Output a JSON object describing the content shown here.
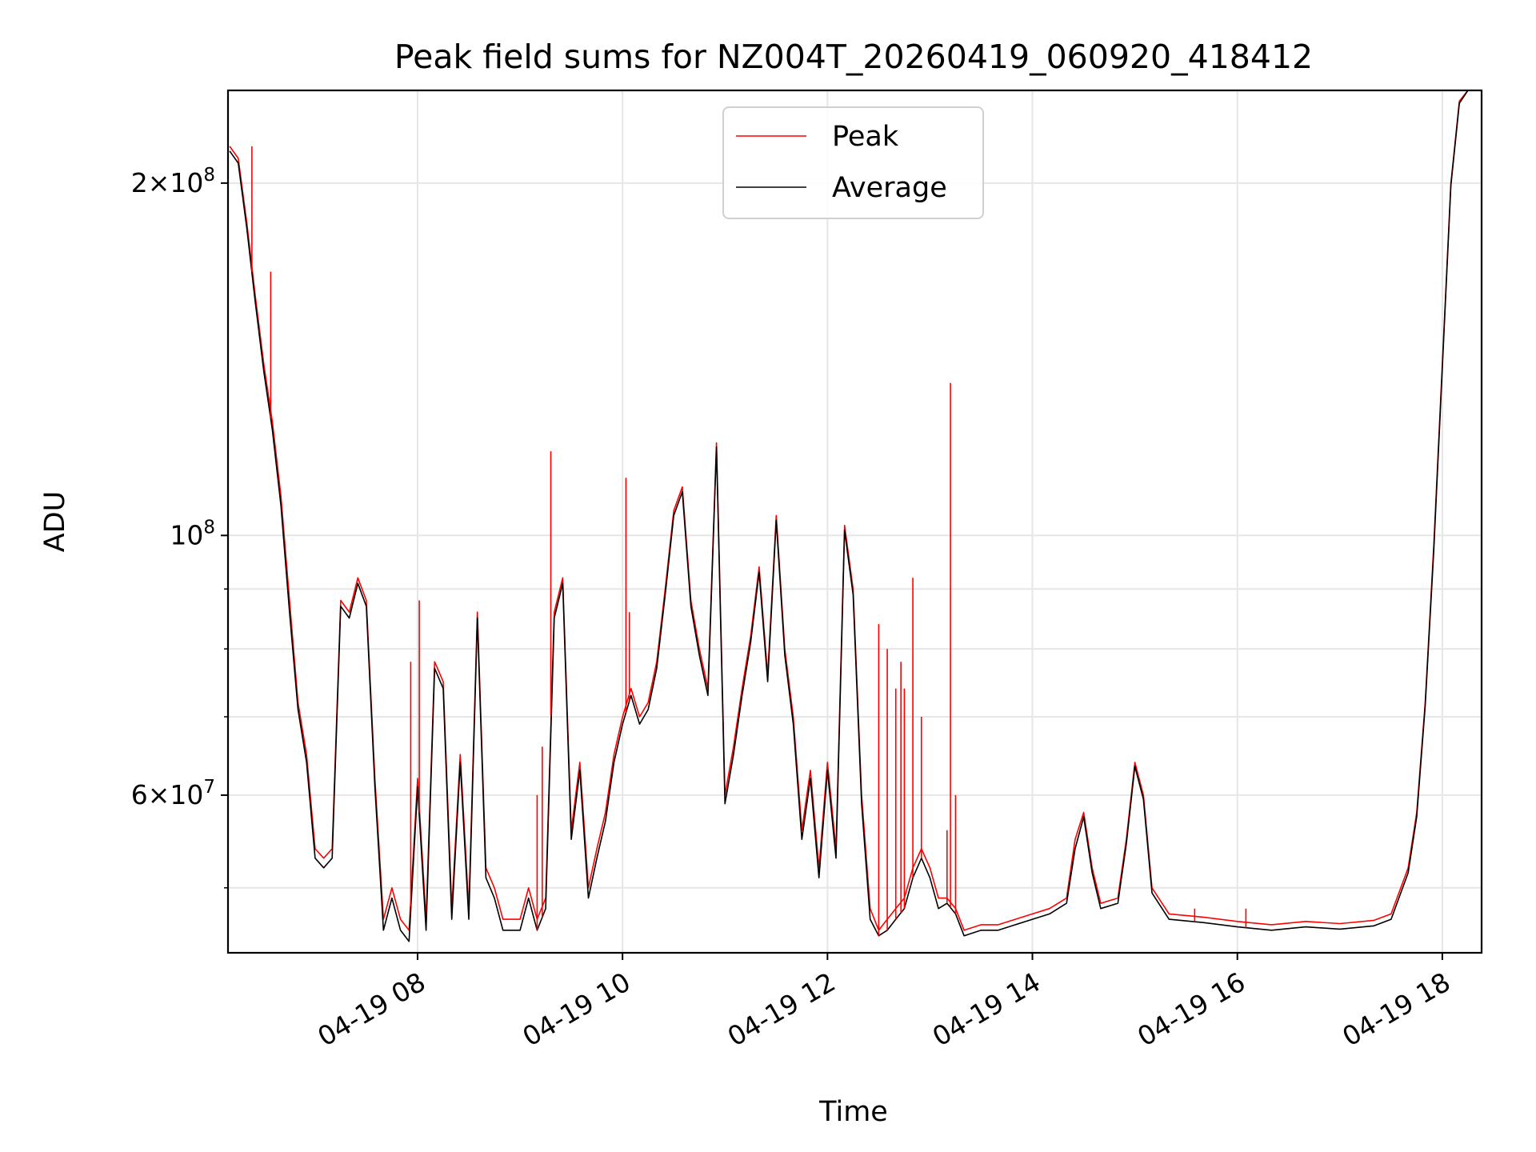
{
  "chart_data": {
    "type": "line",
    "title": "Peak field sums for NZ004T_20260419_060920_418412",
    "xlabel": "Time",
    "ylabel": "ADU",
    "y_scale": "log",
    "xlim": [
      "2026-04-19 06:09",
      "2026-04-19 18:23"
    ],
    "ylim": [
      44000000,
      240000000
    ],
    "grid": true,
    "legend_position": "top-center",
    "x_tick_labels": [
      "04-19 08",
      "04-19 10",
      "04-19 12",
      "04-19 14",
      "04-19 16",
      "04-19 18"
    ],
    "x_tick_values": [
      "2026-04-19 08:00",
      "2026-04-19 10:00",
      "2026-04-19 12:00",
      "2026-04-19 14:00",
      "2026-04-19 16:00",
      "2026-04-19 18:00"
    ],
    "y_ticks_major": [
      {
        "value": 60000000,
        "mantissa": "6",
        "exponent": "7"
      },
      {
        "value": 100000000,
        "mantissa": "",
        "exponent": "8"
      },
      {
        "value": 200000000,
        "mantissa": "2",
        "exponent": "8"
      }
    ],
    "y_ticks_minor": [
      50000000,
      70000000,
      80000000,
      90000000
    ],
    "series": [
      {
        "name": "Peak",
        "color": "#ff0000",
        "points": [
          [
            "06:10",
            215000000
          ],
          [
            "06:15",
            210000000
          ],
          [
            "06:20",
            185000000
          ],
          [
            "06:25",
            160000000
          ],
          [
            "06:30",
            140000000
          ],
          [
            "06:35",
            125000000
          ],
          [
            "06:40",
            108000000
          ],
          [
            "06:45",
            88000000
          ],
          [
            "06:50",
            72000000
          ],
          [
            "06:55",
            65000000
          ],
          [
            "07:00",
            54000000
          ],
          [
            "07:05",
            53000000
          ],
          [
            "07:10",
            54000000
          ],
          [
            "07:15",
            88000000
          ],
          [
            "07:20",
            86000000
          ],
          [
            "07:25",
            92000000
          ],
          [
            "07:30",
            88000000
          ],
          [
            "07:35",
            62000000
          ],
          [
            "07:40",
            47000000
          ],
          [
            "07:45",
            50000000
          ],
          [
            "07:50",
            47000000
          ],
          [
            "07:55",
            46000000
          ],
          [
            "08:00",
            62000000
          ],
          [
            "08:05",
            47000000
          ],
          [
            "08:10",
            78000000
          ],
          [
            "08:15",
            75000000
          ],
          [
            "08:20",
            48000000
          ],
          [
            "08:25",
            65000000
          ],
          [
            "08:30",
            48000000
          ],
          [
            "08:35",
            86000000
          ],
          [
            "08:40",
            52000000
          ],
          [
            "08:45",
            50000000
          ],
          [
            "08:50",
            47000000
          ],
          [
            "08:55",
            47000000
          ],
          [
            "09:00",
            47000000
          ],
          [
            "09:05",
            50000000
          ],
          [
            "09:10",
            47000000
          ],
          [
            "09:15",
            49000000
          ],
          [
            "09:20",
            86000000
          ],
          [
            "09:25",
            92000000
          ],
          [
            "09:30",
            56000000
          ],
          [
            "09:35",
            64000000
          ],
          [
            "09:40",
            50000000
          ],
          [
            "09:45",
            54000000
          ],
          [
            "09:50",
            58000000
          ],
          [
            "09:55",
            65000000
          ],
          [
            "10:00",
            70000000
          ],
          [
            "10:05",
            74000000
          ],
          [
            "10:10",
            70000000
          ],
          [
            "10:15",
            72000000
          ],
          [
            "10:20",
            78000000
          ],
          [
            "10:25",
            90000000
          ],
          [
            "10:30",
            105000000
          ],
          [
            "10:35",
            110000000
          ],
          [
            "10:40",
            88000000
          ],
          [
            "10:45",
            80000000
          ],
          [
            "10:50",
            74000000
          ],
          [
            "10:55",
            120000000
          ],
          [
            "11:00",
            60000000
          ],
          [
            "11:05",
            66000000
          ],
          [
            "11:10",
            74000000
          ],
          [
            "11:15",
            82000000
          ],
          [
            "11:20",
            94000000
          ],
          [
            "11:25",
            76000000
          ],
          [
            "11:30",
            104000000
          ],
          [
            "11:35",
            80000000
          ],
          [
            "11:40",
            70000000
          ],
          [
            "11:45",
            56000000
          ],
          [
            "11:50",
            63000000
          ],
          [
            "11:55",
            52000000
          ],
          [
            "12:00",
            64000000
          ],
          [
            "12:05",
            54000000
          ],
          [
            "12:10",
            102000000
          ],
          [
            "12:15",
            90000000
          ],
          [
            "12:20",
            60000000
          ],
          [
            "12:25",
            48000000
          ],
          [
            "12:30",
            46000000
          ],
          [
            "12:35",
            47000000
          ],
          [
            "12:40",
            48000000
          ],
          [
            "12:45",
            49000000
          ],
          [
            "12:50",
            52000000
          ],
          [
            "12:55",
            54000000
          ],
          [
            "13:00",
            52000000
          ],
          [
            "13:05",
            49000000
          ],
          [
            "13:10",
            49000000
          ],
          [
            "13:15",
            48000000
          ],
          [
            "13:20",
            46000000
          ],
          [
            "13:30",
            46500000
          ],
          [
            "13:40",
            46500000
          ],
          [
            "13:50",
            47000000
          ],
          [
            "14:00",
            47500000
          ],
          [
            "14:10",
            48000000
          ],
          [
            "14:20",
            49000000
          ],
          [
            "14:25",
            55000000
          ],
          [
            "14:30",
            58000000
          ],
          [
            "14:35",
            52000000
          ],
          [
            "14:40",
            48500000
          ],
          [
            "14:50",
            49000000
          ],
          [
            "14:55",
            55000000
          ],
          [
            "15:00",
            64000000
          ],
          [
            "15:05",
            60000000
          ],
          [
            "15:10",
            50000000
          ],
          [
            "15:20",
            47500000
          ],
          [
            "15:40",
            47200000
          ],
          [
            "16:00",
            46800000
          ],
          [
            "16:20",
            46500000
          ],
          [
            "16:40",
            46800000
          ],
          [
            "17:00",
            46600000
          ],
          [
            "17:20",
            46900000
          ],
          [
            "17:30",
            47500000
          ],
          [
            "17:40",
            52000000
          ],
          [
            "17:45",
            58000000
          ],
          [
            "17:50",
            72000000
          ],
          [
            "17:55",
            98000000
          ],
          [
            "18:00",
            140000000
          ],
          [
            "18:05",
            200000000
          ],
          [
            "18:10",
            235000000
          ],
          [
            "18:15",
            240000000
          ]
        ]
      },
      {
        "name": "Average",
        "color": "#000000",
        "points": [
          [
            "06:10",
            213000000
          ],
          [
            "06:15",
            208000000
          ],
          [
            "06:20",
            183000000
          ],
          [
            "06:25",
            158000000
          ],
          [
            "06:30",
            138000000
          ],
          [
            "06:35",
            123000000
          ],
          [
            "06:40",
            106000000
          ],
          [
            "06:45",
            86000000
          ],
          [
            "06:50",
            71000000
          ],
          [
            "06:55",
            64000000
          ],
          [
            "07:00",
            53000000
          ],
          [
            "07:05",
            52000000
          ],
          [
            "07:10",
            53000000
          ],
          [
            "07:15",
            87000000
          ],
          [
            "07:20",
            85000000
          ],
          [
            "07:25",
            91000000
          ],
          [
            "07:30",
            87000000
          ],
          [
            "07:35",
            61000000
          ],
          [
            "07:40",
            46000000
          ],
          [
            "07:45",
            49000000
          ],
          [
            "07:50",
            46000000
          ],
          [
            "07:55",
            45000000
          ],
          [
            "08:00",
            61000000
          ],
          [
            "08:05",
            46000000
          ],
          [
            "08:10",
            77000000
          ],
          [
            "08:15",
            74000000
          ],
          [
            "08:20",
            47000000
          ],
          [
            "08:25",
            64000000
          ],
          [
            "08:30",
            47000000
          ],
          [
            "08:35",
            85000000
          ],
          [
            "08:40",
            51000000
          ],
          [
            "08:45",
            49000000
          ],
          [
            "08:50",
            46000000
          ],
          [
            "08:55",
            46000000
          ],
          [
            "09:00",
            46000000
          ],
          [
            "09:05",
            49000000
          ],
          [
            "09:10",
            46000000
          ],
          [
            "09:15",
            48000000
          ],
          [
            "09:20",
            85000000
          ],
          [
            "09:25",
            91000000
          ],
          [
            "09:30",
            55000000
          ],
          [
            "09:35",
            63000000
          ],
          [
            "09:40",
            49000000
          ],
          [
            "09:45",
            53000000
          ],
          [
            "09:50",
            57000000
          ],
          [
            "09:55",
            64000000
          ],
          [
            "10:00",
            69000000
          ],
          [
            "10:05",
            73000000
          ],
          [
            "10:10",
            69000000
          ],
          [
            "10:15",
            71000000
          ],
          [
            "10:20",
            77000000
          ],
          [
            "10:25",
            89000000
          ],
          [
            "10:30",
            104000000
          ],
          [
            "10:35",
            109000000
          ],
          [
            "10:40",
            87000000
          ],
          [
            "10:45",
            79000000
          ],
          [
            "10:50",
            73000000
          ],
          [
            "10:55",
            119000000
          ],
          [
            "11:00",
            59000000
          ],
          [
            "11:05",
            65000000
          ],
          [
            "11:10",
            73000000
          ],
          [
            "11:15",
            81000000
          ],
          [
            "11:20",
            93000000
          ],
          [
            "11:25",
            75000000
          ],
          [
            "11:30",
            103000000
          ],
          [
            "11:35",
            79000000
          ],
          [
            "11:40",
            69000000
          ],
          [
            "11:45",
            55000000
          ],
          [
            "11:50",
            62000000
          ],
          [
            "11:55",
            51000000
          ],
          [
            "12:00",
            63000000
          ],
          [
            "12:05",
            53000000
          ],
          [
            "12:10",
            101000000
          ],
          [
            "12:15",
            89000000
          ],
          [
            "12:20",
            59000000
          ],
          [
            "12:25",
            47000000
          ],
          [
            "12:30",
            45500000
          ],
          [
            "12:35",
            46000000
          ],
          [
            "12:40",
            47000000
          ],
          [
            "12:45",
            48000000
          ],
          [
            "12:50",
            51000000
          ],
          [
            "12:55",
            53000000
          ],
          [
            "13:00",
            51000000
          ],
          [
            "13:05",
            48000000
          ],
          [
            "13:10",
            48500000
          ],
          [
            "13:15",
            47500000
          ],
          [
            "13:20",
            45500000
          ],
          [
            "13:30",
            46000000
          ],
          [
            "13:40",
            46000000
          ],
          [
            "13:50",
            46500000
          ],
          [
            "14:00",
            47000000
          ],
          [
            "14:10",
            47500000
          ],
          [
            "14:20",
            48500000
          ],
          [
            "14:25",
            54000000
          ],
          [
            "14:30",
            57500000
          ],
          [
            "14:35",
            51500000
          ],
          [
            "14:40",
            48000000
          ],
          [
            "14:50",
            48500000
          ],
          [
            "14:55",
            54500000
          ],
          [
            "15:00",
            63500000
          ],
          [
            "15:05",
            59500000
          ],
          [
            "15:10",
            49500000
          ],
          [
            "15:20",
            47000000
          ],
          [
            "15:40",
            46700000
          ],
          [
            "16:00",
            46300000
          ],
          [
            "16:20",
            46000000
          ],
          [
            "16:40",
            46300000
          ],
          [
            "17:00",
            46100000
          ],
          [
            "17:20",
            46400000
          ],
          [
            "17:30",
            47000000
          ],
          [
            "17:40",
            51500000
          ],
          [
            "17:45",
            57500000
          ],
          [
            "17:50",
            71500000
          ],
          [
            "17:55",
            97000000
          ],
          [
            "18:00",
            139000000
          ],
          [
            "18:05",
            199000000
          ],
          [
            "18:10",
            234000000
          ],
          [
            "18:15",
            240000000
          ]
        ]
      }
    ],
    "peak_spikes": [
      [
        "06:23",
        215000000
      ],
      [
        "06:34",
        168000000
      ],
      [
        "07:56",
        78000000
      ],
      [
        "08:01",
        88000000
      ],
      [
        "09:10",
        60000000
      ],
      [
        "09:13",
        66000000
      ],
      [
        "09:18",
        118000000
      ],
      [
        "10:02",
        112000000
      ],
      [
        "10:04",
        86000000
      ],
      [
        "12:30",
        84000000
      ],
      [
        "12:35",
        80000000
      ],
      [
        "12:40",
        74000000
      ],
      [
        "12:43",
        78000000
      ],
      [
        "12:45",
        74000000
      ],
      [
        "12:50",
        92000000
      ],
      [
        "12:55",
        70000000
      ],
      [
        "13:10",
        56000000
      ],
      [
        "13:12",
        135000000
      ],
      [
        "13:15",
        60000000
      ],
      [
        "15:35",
        48000000
      ],
      [
        "16:05",
        48000000
      ]
    ]
  }
}
